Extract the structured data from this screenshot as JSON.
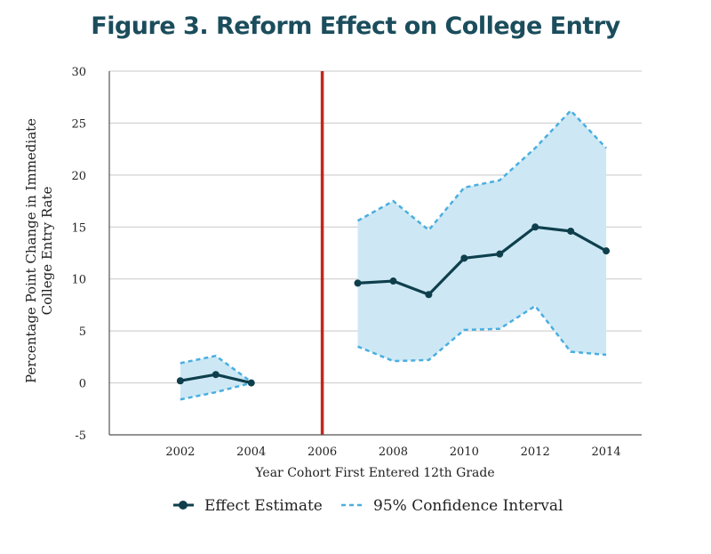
{
  "chart_data": {
    "type": "line",
    "title": "Figure 3. Reform Effect on College Entry",
    "xlabel": "Year Cohort First Entered 12th Grade",
    "ylabel_line1": "Percentage Point Change in Immediate",
    "ylabel_line2": "College Entry Rate",
    "ylim": [
      -5,
      30
    ],
    "xlim": [
      2000,
      2015
    ],
    "yticks": [
      -5,
      0,
      5,
      10,
      15,
      20,
      25,
      30
    ],
    "xticks": [
      2002,
      2004,
      2006,
      2008,
      2010,
      2012,
      2014
    ],
    "grid": true,
    "reform_year": 2006,
    "segments": [
      {
        "x": [
          2002,
          2003,
          2004
        ],
        "estimate": [
          0.2,
          0.8,
          0.0
        ],
        "ci_upper": [
          1.9,
          2.6,
          0.1
        ],
        "ci_lower": [
          -1.6,
          -0.9,
          0.0
        ]
      },
      {
        "x": [
          2007,
          2008,
          2009,
          2010,
          2011,
          2012,
          2013,
          2014
        ],
        "estimate": [
          9.6,
          9.8,
          8.5,
          12.0,
          12.4,
          15.0,
          14.6,
          12.7
        ],
        "ci_upper": [
          15.6,
          17.5,
          14.7,
          18.8,
          19.5,
          22.6,
          26.2,
          22.6
        ],
        "ci_lower": [
          3.5,
          2.1,
          2.2,
          5.1,
          5.2,
          7.4,
          3.0,
          2.7
        ]
      }
    ],
    "legend": {
      "position": "bottom-center",
      "estimate_label": "Effect Estimate",
      "ci_label": "95% Confidence Interval"
    },
    "colors": {
      "estimate": "#0f3f4d",
      "ci_line": "#4aaee0",
      "ci_fill": "#cde8f4",
      "reform_line": "#c0281c",
      "grid": "#c8c8c8",
      "title": "#1b4d5c"
    }
  }
}
